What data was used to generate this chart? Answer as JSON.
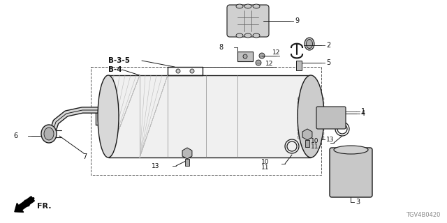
{
  "bg_color": "#ffffff",
  "diagram_code": "TGV4B0420",
  "line_color": "#1a1a1a",
  "label_color": "#111111",
  "dashed_color": "#555555",
  "leader_color": "#333333",
  "part_color": "#aaaaaa",
  "body_fill": "#e0e0e0",
  "body_dark": "#888888",
  "figsize": [
    6.4,
    3.2
  ],
  "dpi": 100,
  "xlim": [
    0,
    640
  ],
  "ylim": [
    0,
    320
  ]
}
